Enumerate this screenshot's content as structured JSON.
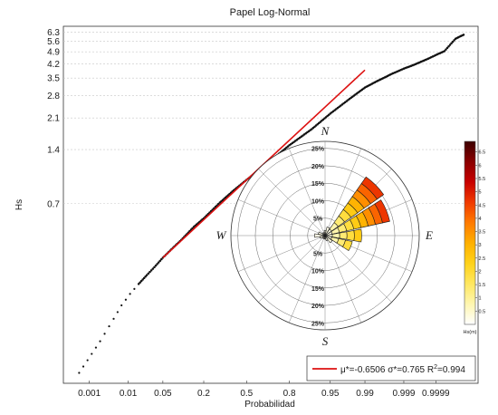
{
  "chart_data": [
    {
      "type": "scatter",
      "title": "Papel Log-Normal",
      "xlabel": "Probabilidad",
      "ylabel": "Hs",
      "x_scale": "normal-probability",
      "y_scale": "log",
      "x_ticks": [
        0.001,
        0.01,
        0.05,
        0.2,
        0.5,
        0.8,
        0.95,
        0.99,
        0.999,
        0.9999
      ],
      "x_tick_labels": [
        "0.001",
        "0.01",
        "0.05",
        "0.2",
        "0.5",
        "0.8",
        "0.95",
        "0.99",
        "0.999",
        "0.9999"
      ],
      "y_ticks": [
        0.7,
        1.4,
        2.1,
        2.8,
        3.5,
        4.2,
        4.9,
        5.6,
        6.3
      ],
      "y_tick_labels": [
        "0.7",
        "1.4",
        "2.1",
        "2.8",
        "3.5",
        "4.2",
        "4.9",
        "5.6",
        "6.3"
      ],
      "grid": true,
      "series": [
        {
          "style": "dots",
          "color": "#111111",
          "x": [
            0.0005,
            0.002,
            0.0045,
            0.007,
            0.011,
            0.017,
            0.025,
            0.035,
            0.05,
            0.07,
            0.1,
            0.15,
            0.2,
            0.3,
            0.4,
            0.5,
            0.6,
            0.7,
            0.8,
            0.9,
            0.95,
            0.98,
            0.99,
            0.995,
            0.998,
            0.999,
            0.9995,
            0.9998,
            0.9999,
            0.99995,
            0.99998,
            0.99999
          ],
          "y": [
            0.08,
            0.12,
            0.16,
            0.19,
            0.22,
            0.25,
            0.28,
            0.31,
            0.35,
            0.39,
            0.44,
            0.52,
            0.58,
            0.71,
            0.83,
            0.95,
            1.08,
            1.25,
            1.48,
            1.82,
            2.22,
            2.72,
            3.1,
            3.38,
            3.72,
            3.95,
            4.15,
            4.45,
            4.7,
            4.95,
            5.8,
            6.1
          ]
        },
        {
          "style": "line",
          "color": "#dd1111",
          "x": [
            0.05,
            0.99
          ],
          "y": [
            0.35,
            3.88
          ]
        }
      ],
      "legend": {
        "position": "bottom-right",
        "prefix_1": "μ*=-0.6506 σ*=0.765 R",
        "superscript": "2",
        "prefix_2": "=0.994"
      }
    },
    {
      "type": "wind-rose",
      "cardinals": [
        "N",
        "E",
        "S",
        "W"
      ],
      "radial_ticks": [
        5,
        10,
        15,
        20,
        25
      ],
      "radial_tick_labels": [
        "5%",
        "10%",
        "15%",
        "20%",
        "25%"
      ],
      "sector_width_deg": 22.5,
      "sectors": [
        {
          "direction_deg": 0,
          "frequency_pct": 1.5
        },
        {
          "direction_deg": 22.5,
          "frequency_pct": 2.5
        },
        {
          "direction_deg": 45,
          "frequency_pct": 20.5
        },
        {
          "direction_deg": 67.5,
          "frequency_pct": 19.0
        },
        {
          "direction_deg": 90,
          "frequency_pct": 10.5
        },
        {
          "direction_deg": 112.5,
          "frequency_pct": 8.0
        },
        {
          "direction_deg": 135,
          "frequency_pct": 2.5
        },
        {
          "direction_deg": 157.5,
          "frequency_pct": 1.5
        },
        {
          "direction_deg": 180,
          "frequency_pct": 1.0
        },
        {
          "direction_deg": 202.5,
          "frequency_pct": 1.0
        },
        {
          "direction_deg": 225,
          "frequency_pct": 1.0
        },
        {
          "direction_deg": 247.5,
          "frequency_pct": 1.5
        },
        {
          "direction_deg": 270,
          "frequency_pct": 3.0
        },
        {
          "direction_deg": 292.5,
          "frequency_pct": 2.0
        },
        {
          "direction_deg": 315,
          "frequency_pct": 1.0
        },
        {
          "direction_deg": 337.5,
          "frequency_pct": 1.0
        }
      ],
      "colorbar": {
        "label": "Hs(m)",
        "ticks": [
          0.5,
          1,
          1.5,
          2,
          2.5,
          3,
          3.5,
          4,
          4.5,
          5,
          5.5,
          6,
          6.5
        ],
        "tick_labels": [
          "0.5",
          "1",
          "1.5",
          "2",
          "2.5",
          "3",
          "3.5",
          "4",
          "4.5",
          "5",
          "5.5",
          "6",
          "6.5"
        ],
        "range": [
          0,
          6.9
        ],
        "colors": [
          "#ffffff",
          "#fff6b0",
          "#ffe760",
          "#ffd21a",
          "#ffb000",
          "#ff7a00",
          "#f03a00",
          "#c80000",
          "#8a0000",
          "#3c0000"
        ]
      }
    }
  ]
}
